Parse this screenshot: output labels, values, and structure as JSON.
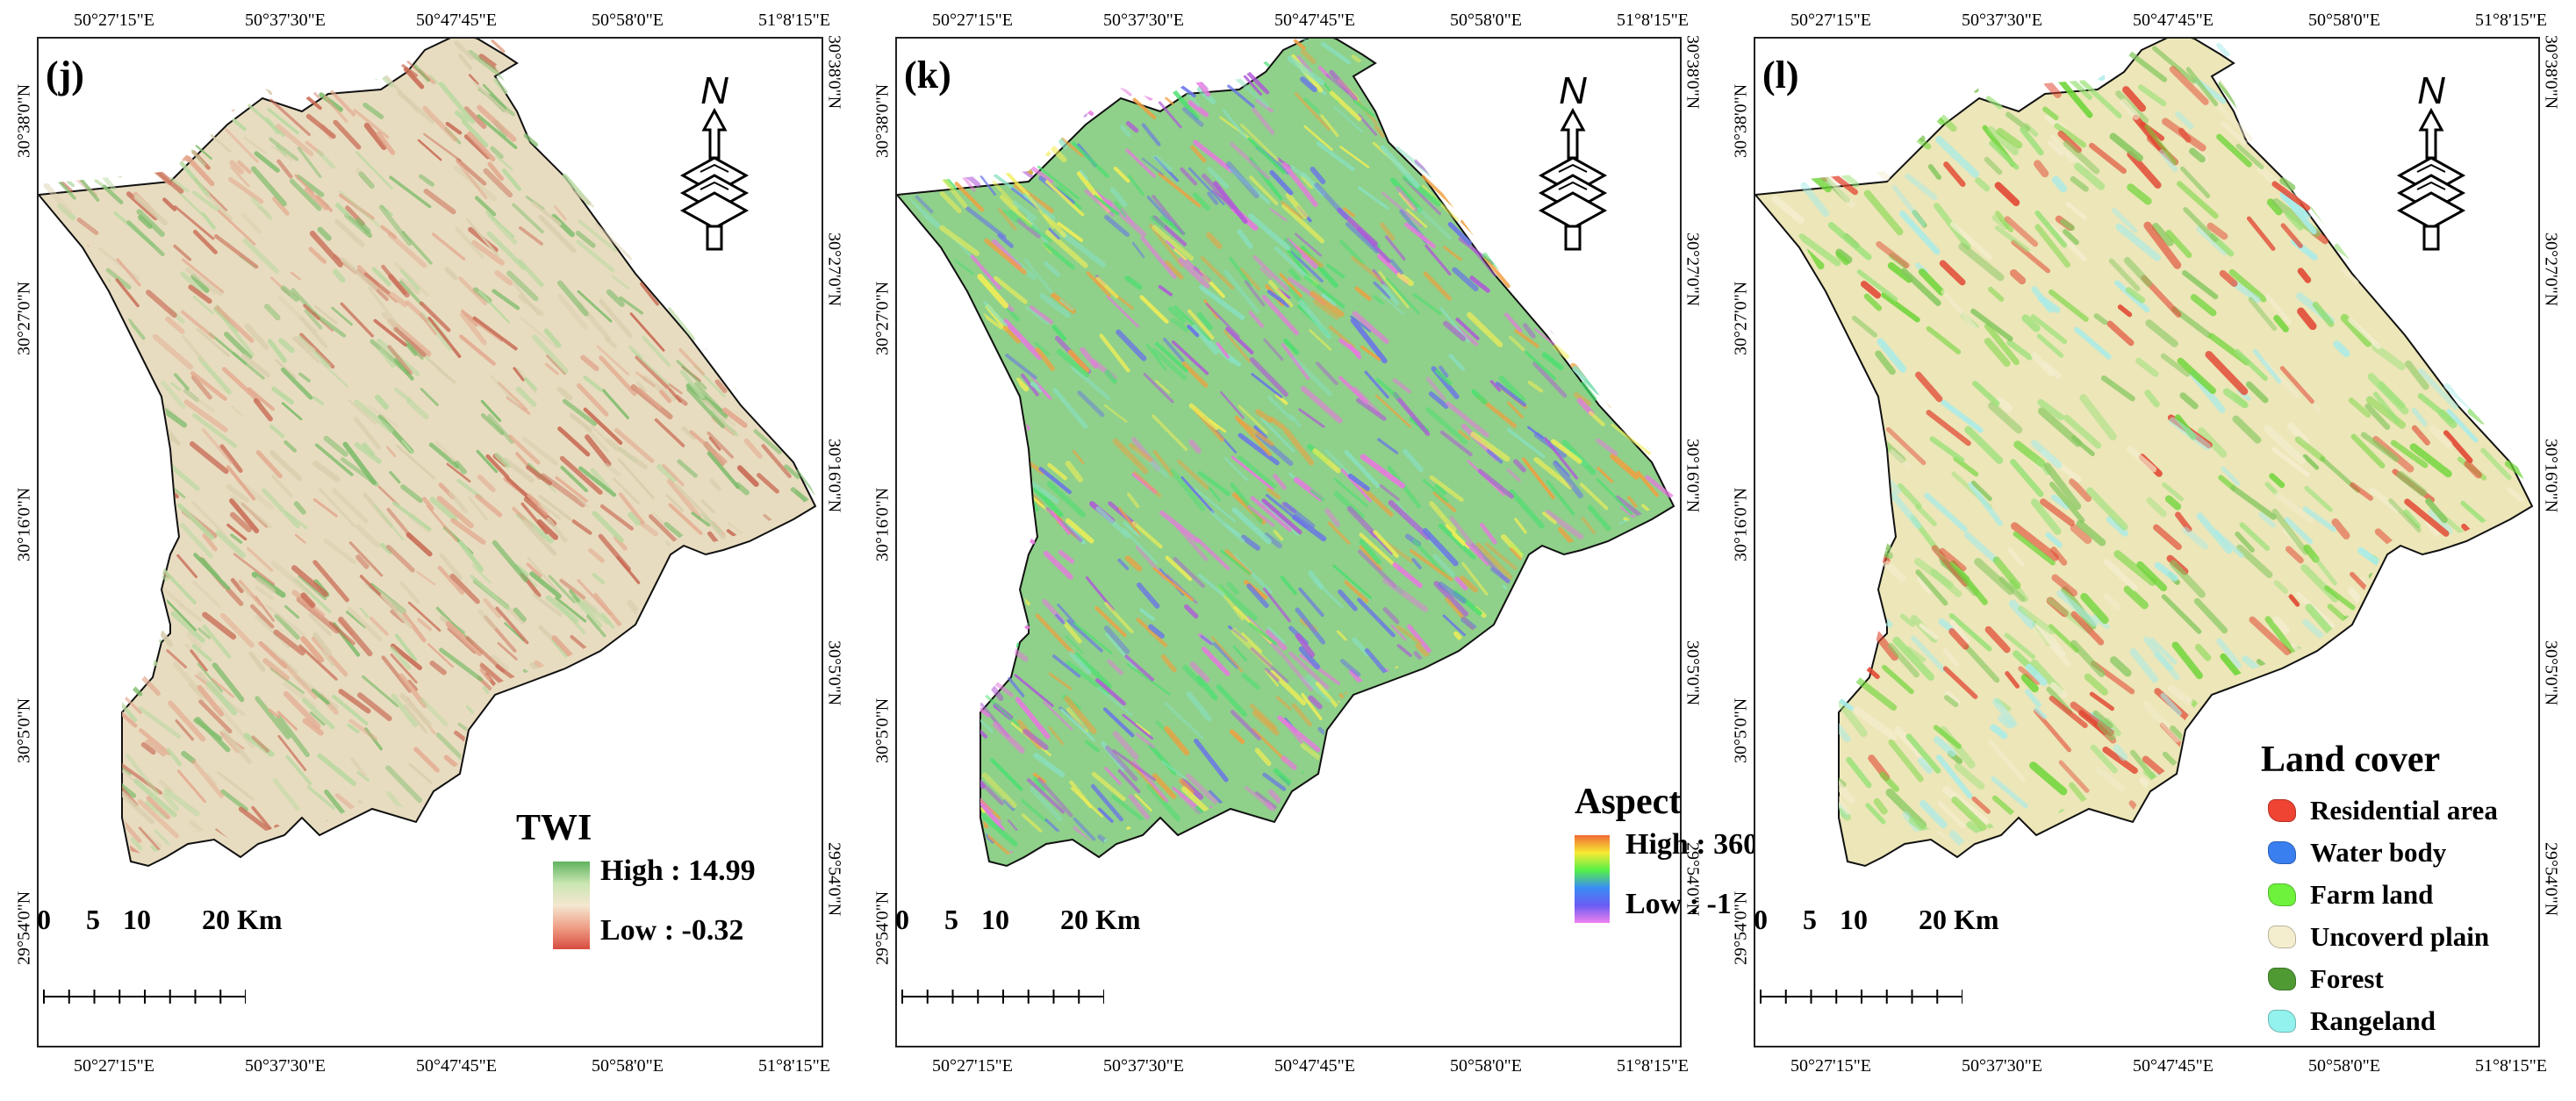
{
  "axis": {
    "lon_top": [
      "50°27'15\"E",
      "50°37'30\"E",
      "50°47'45\"E",
      "50°58'0\"E",
      "51°8'15\"E"
    ],
    "lon_bottom": [
      "50°27'15\"E",
      "50°37'30\"E",
      "50°47'45\"E",
      "50°58'0\"E",
      "51°8'15\"E"
    ],
    "lat": [
      "30°38'0\"N",
      "30°27'0\"N",
      "30°16'0\"N",
      "30°5'0\"N",
      "29°54'0\"N"
    ]
  },
  "north_arrow": {
    "letter": "N",
    "icon": "north-arrow-icon"
  },
  "scale": {
    "labels": [
      "0",
      "5",
      "10",
      "20 Km"
    ]
  },
  "panels": [
    {
      "label": "(j)",
      "legend": {
        "title": "TWI",
        "high": "High : 14.99",
        "low": "Low : -0.32",
        "ramp": [
          "#5fb35f",
          "#c9e6b2",
          "#f4e7d0",
          "#ef9f87",
          "#d84d3f"
        ]
      }
    },
    {
      "label": "(k)",
      "legend": {
        "title": "Aspect",
        "high": "High : 360",
        "low": "Low : -1",
        "ramp": [
          "#f06a33",
          "#f7ea33",
          "#56f046",
          "#3a8cf5",
          "#6a5cf2",
          "#f080f0"
        ]
      }
    },
    {
      "label": "(l)",
      "legend": {
        "title": "Land cover",
        "items": [
          {
            "label": "Residential area",
            "color": "#ef4433"
          },
          {
            "label": "Water body",
            "color": "#3a7ff0"
          },
          {
            "label": "Farm land",
            "color": "#6ef23c"
          },
          {
            "label": "Uncoverd plain",
            "color": "#f4eecf"
          },
          {
            "label": "Forest",
            "color": "#4f9a33"
          },
          {
            "label": "Rangeland",
            "color": "#93f2ee"
          }
        ]
      }
    }
  ]
}
